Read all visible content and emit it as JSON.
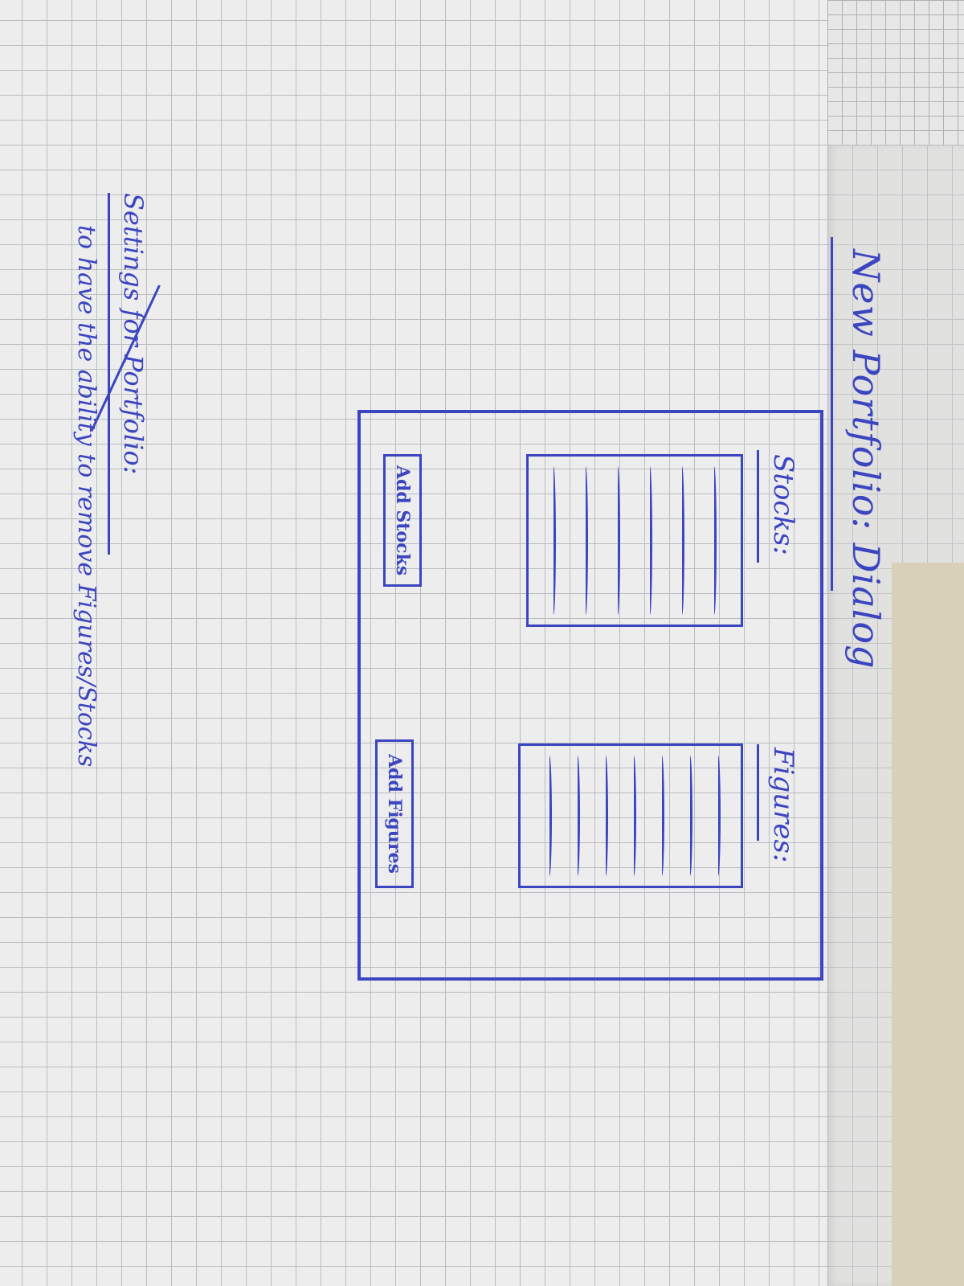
{
  "sketch": {
    "title": "New Portfolio: Dialog",
    "dialog": {
      "stocks_label": "Stocks:",
      "figures_label": "Figures:",
      "add_stocks_button": "Add Stocks",
      "add_figures_button": "Add Figures"
    },
    "notes": {
      "heading": "Settings for Portfolio:",
      "line": "to have the ability to remove Figures/Stocks"
    },
    "ink_color": "#3b45c0",
    "paper_color": "#ededed"
  }
}
